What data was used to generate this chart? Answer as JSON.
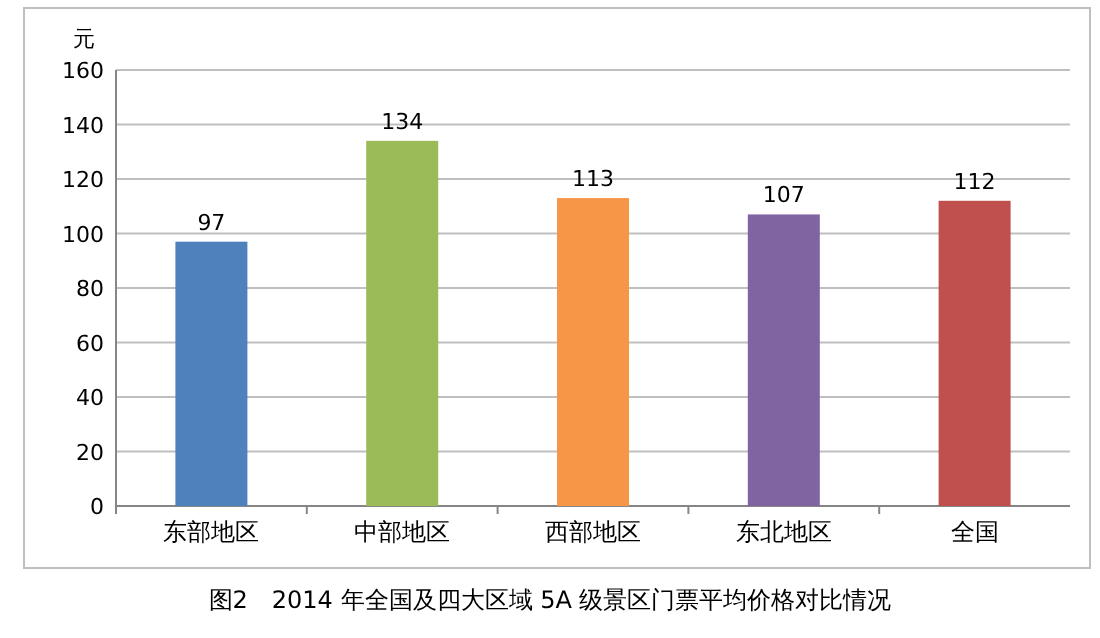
{
  "chart_data": {
    "type": "bar",
    "title": "图2　2014 年全国及四大区域 5A 级景区门票平均价格对比情况",
    "ylabel": "元",
    "categories": [
      "东部地区",
      "中部地区",
      "西部地区",
      "东北地区",
      "全国"
    ],
    "values": [
      97,
      134,
      113,
      107,
      112
    ],
    "colors": [
      "#4f81bd",
      "#9bbb59",
      "#f79646",
      "#8064a2",
      "#c0504d"
    ],
    "ylim": [
      0,
      160
    ],
    "yticks": [
      0,
      20,
      40,
      60,
      80,
      100,
      120,
      140,
      160
    ],
    "grid": "y",
    "data_labels": true
  }
}
